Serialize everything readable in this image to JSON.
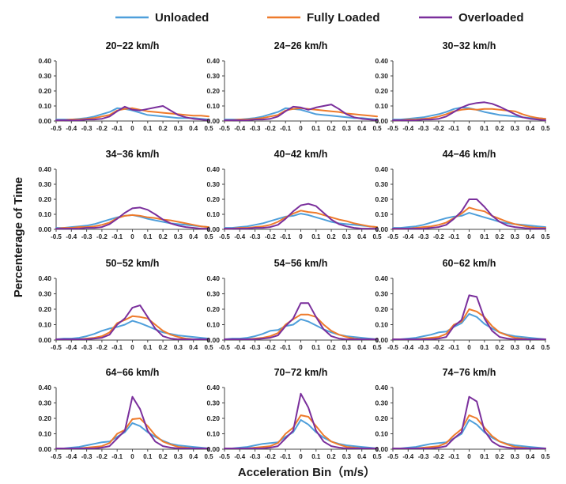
{
  "chart_data": {
    "type": "line",
    "ylabel": "Percenterage of Time",
    "xlabel": "Acceleration Bin（m/s）",
    "x": [
      -0.5,
      -0.45,
      -0.4,
      -0.35,
      -0.3,
      -0.25,
      -0.2,
      -0.15,
      -0.1,
      -0.05,
      0,
      0.05,
      0.1,
      0.15,
      0.2,
      0.25,
      0.3,
      0.35,
      0.4,
      0.45,
      0.5
    ],
    "x_tick_labels": [
      "-0.5",
      "-0.4",
      "-0.3",
      "-0.2",
      "-0.1",
      "0",
      "0.1",
      "0.2",
      "0.3",
      "0.4",
      "0.5"
    ],
    "y_tick_labels": [
      "0.00",
      "0.10",
      "0.20",
      "0.30",
      "0.40"
    ],
    "ylim": [
      0,
      0.4
    ],
    "xlim": [
      -0.5,
      0.5
    ],
    "legend": [
      {
        "name": "Unloaded",
        "color": "#4f9fdb"
      },
      {
        "name": "Fully Loaded",
        "color": "#ee7b2c"
      },
      {
        "name": "Overloaded",
        "color": "#7a2f9c"
      }
    ],
    "panels": [
      {
        "title": "20−22 km/h",
        "series": [
          [
            0.01,
            0.01,
            0.01,
            0.015,
            0.02,
            0.03,
            0.045,
            0.06,
            0.085,
            0.08,
            0.07,
            0.055,
            0.04,
            0.035,
            0.03,
            0.025,
            0.02,
            0.02,
            0.02,
            0.015,
            0.01
          ],
          [
            0.005,
            0.005,
            0.01,
            0.01,
            0.015,
            0.02,
            0.03,
            0.04,
            0.07,
            0.08,
            0.085,
            0.075,
            0.065,
            0.06,
            0.055,
            0.05,
            0.045,
            0.04,
            0.035,
            0.035,
            0.03
          ],
          [
            0.005,
            0.005,
            0.005,
            0.005,
            0.01,
            0.01,
            0.015,
            0.03,
            0.065,
            0.095,
            0.075,
            0.07,
            0.08,
            0.09,
            0.1,
            0.07,
            0.04,
            0.025,
            0.015,
            0.01,
            0.005
          ]
        ]
      },
      {
        "title": "24−26 km/h",
        "series": [
          [
            0.01,
            0.01,
            0.01,
            0.015,
            0.02,
            0.03,
            0.045,
            0.06,
            0.085,
            0.08,
            0.075,
            0.06,
            0.045,
            0.04,
            0.035,
            0.03,
            0.025,
            0.02,
            0.02,
            0.015,
            0.01
          ],
          [
            0.005,
            0.005,
            0.01,
            0.01,
            0.015,
            0.02,
            0.03,
            0.04,
            0.07,
            0.08,
            0.085,
            0.08,
            0.075,
            0.07,
            0.065,
            0.06,
            0.05,
            0.045,
            0.04,
            0.035,
            0.03
          ],
          [
            0.005,
            0.005,
            0.005,
            0.005,
            0.01,
            0.01,
            0.015,
            0.03,
            0.065,
            0.095,
            0.09,
            0.075,
            0.09,
            0.1,
            0.11,
            0.08,
            0.045,
            0.025,
            0.015,
            0.01,
            0.005
          ]
        ]
      },
      {
        "title": "30−32 km/h",
        "series": [
          [
            0.01,
            0.01,
            0.015,
            0.02,
            0.025,
            0.035,
            0.045,
            0.06,
            0.08,
            0.09,
            0.085,
            0.075,
            0.06,
            0.05,
            0.04,
            0.035,
            0.03,
            0.025,
            0.02,
            0.02,
            0.015
          ],
          [
            0.005,
            0.005,
            0.01,
            0.01,
            0.015,
            0.02,
            0.03,
            0.045,
            0.065,
            0.075,
            0.08,
            0.075,
            0.08,
            0.08,
            0.075,
            0.07,
            0.065,
            0.045,
            0.03,
            0.02,
            0.015
          ],
          [
            0.005,
            0.005,
            0.005,
            0.005,
            0.01,
            0.01,
            0.015,
            0.03,
            0.06,
            0.09,
            0.11,
            0.12,
            0.125,
            0.115,
            0.095,
            0.07,
            0.045,
            0.025,
            0.015,
            0.01,
            0.005
          ]
        ]
      },
      {
        "title": "34−36 km/h",
        "series": [
          [
            0.01,
            0.01,
            0.015,
            0.02,
            0.025,
            0.035,
            0.05,
            0.065,
            0.08,
            0.09,
            0.095,
            0.085,
            0.07,
            0.06,
            0.05,
            0.04,
            0.035,
            0.03,
            0.025,
            0.02,
            0.015
          ],
          [
            0.005,
            0.01,
            0.01,
            0.015,
            0.015,
            0.02,
            0.03,
            0.045,
            0.075,
            0.09,
            0.095,
            0.09,
            0.08,
            0.075,
            0.065,
            0.06,
            0.05,
            0.04,
            0.03,
            0.02,
            0.015
          ],
          [
            0.005,
            0.005,
            0.005,
            0.005,
            0.01,
            0.01,
            0.015,
            0.035,
            0.07,
            0.11,
            0.14,
            0.145,
            0.13,
            0.1,
            0.065,
            0.04,
            0.025,
            0.015,
            0.01,
            0.005,
            0.005
          ]
        ]
      },
      {
        "title": "40−42 km/h",
        "series": [
          [
            0.01,
            0.01,
            0.015,
            0.02,
            0.03,
            0.04,
            0.055,
            0.07,
            0.085,
            0.09,
            0.105,
            0.095,
            0.08,
            0.065,
            0.05,
            0.04,
            0.035,
            0.03,
            0.025,
            0.02,
            0.015
          ],
          [
            0.005,
            0.005,
            0.01,
            0.01,
            0.015,
            0.02,
            0.03,
            0.05,
            0.08,
            0.105,
            0.125,
            0.115,
            0.11,
            0.095,
            0.08,
            0.065,
            0.055,
            0.04,
            0.03,
            0.02,
            0.015
          ],
          [
            0.005,
            0.005,
            0.005,
            0.005,
            0.01,
            0.01,
            0.015,
            0.03,
            0.07,
            0.12,
            0.16,
            0.17,
            0.155,
            0.11,
            0.065,
            0.035,
            0.02,
            0.01,
            0.005,
            0.005,
            0.005
          ]
        ]
      },
      {
        "title": "44−46 km/h",
        "series": [
          [
            0.01,
            0.01,
            0.015,
            0.02,
            0.03,
            0.045,
            0.06,
            0.075,
            0.085,
            0.09,
            0.11,
            0.095,
            0.08,
            0.065,
            0.05,
            0.04,
            0.035,
            0.03,
            0.025,
            0.02,
            0.015
          ],
          [
            0.005,
            0.005,
            0.005,
            0.01,
            0.015,
            0.02,
            0.03,
            0.045,
            0.075,
            0.105,
            0.145,
            0.13,
            0.12,
            0.09,
            0.07,
            0.05,
            0.035,
            0.025,
            0.015,
            0.01,
            0.01
          ],
          [
            0.005,
            0.005,
            0.005,
            0.005,
            0.005,
            0.01,
            0.015,
            0.03,
            0.07,
            0.12,
            0.2,
            0.2,
            0.15,
            0.09,
            0.05,
            0.025,
            0.015,
            0.01,
            0.005,
            0.005,
            0.005
          ]
        ]
      },
      {
        "title": "50−52 km/h",
        "series": [
          [
            0.005,
            0.01,
            0.01,
            0.015,
            0.025,
            0.04,
            0.06,
            0.075,
            0.085,
            0.1,
            0.125,
            0.11,
            0.09,
            0.07,
            0.05,
            0.04,
            0.03,
            0.025,
            0.02,
            0.015,
            0.01
          ],
          [
            0.005,
            0.005,
            0.005,
            0.005,
            0.01,
            0.015,
            0.025,
            0.05,
            0.11,
            0.13,
            0.155,
            0.15,
            0.14,
            0.1,
            0.06,
            0.035,
            0.02,
            0.01,
            0.005,
            0.005,
            0.005
          ],
          [
            0.005,
            0.005,
            0.005,
            0.005,
            0.005,
            0.01,
            0.015,
            0.035,
            0.1,
            0.14,
            0.21,
            0.225,
            0.15,
            0.075,
            0.025,
            0.01,
            0.005,
            0.005,
            0.005,
            0.005,
            0.005
          ]
        ]
      },
      {
        "title": "54−56 km/h",
        "series": [
          [
            0.005,
            0.01,
            0.01,
            0.015,
            0.025,
            0.04,
            0.06,
            0.065,
            0.09,
            0.1,
            0.135,
            0.12,
            0.095,
            0.07,
            0.05,
            0.035,
            0.025,
            0.02,
            0.015,
            0.01,
            0.005
          ],
          [
            0.005,
            0.005,
            0.005,
            0.005,
            0.01,
            0.015,
            0.025,
            0.045,
            0.1,
            0.135,
            0.165,
            0.165,
            0.15,
            0.1,
            0.06,
            0.035,
            0.02,
            0.01,
            0.005,
            0.005,
            0.005
          ],
          [
            0.005,
            0.005,
            0.005,
            0.005,
            0.005,
            0.01,
            0.015,
            0.03,
            0.09,
            0.14,
            0.24,
            0.24,
            0.15,
            0.07,
            0.025,
            0.01,
            0.005,
            0.005,
            0.005,
            0.005,
            0.005
          ]
        ]
      },
      {
        "title": "60−62 km/h",
        "series": [
          [
            0.005,
            0.005,
            0.01,
            0.015,
            0.025,
            0.035,
            0.05,
            0.055,
            0.085,
            0.11,
            0.17,
            0.15,
            0.105,
            0.075,
            0.05,
            0.035,
            0.025,
            0.02,
            0.015,
            0.01,
            0.005
          ],
          [
            0.005,
            0.005,
            0.005,
            0.005,
            0.01,
            0.015,
            0.02,
            0.04,
            0.1,
            0.12,
            0.2,
            0.185,
            0.15,
            0.09,
            0.05,
            0.03,
            0.015,
            0.01,
            0.005,
            0.005,
            0.005
          ],
          [
            0.005,
            0.005,
            0.005,
            0.005,
            0.005,
            0.005,
            0.01,
            0.02,
            0.09,
            0.13,
            0.29,
            0.28,
            0.14,
            0.06,
            0.02,
            0.01,
            0.005,
            0.005,
            0.005,
            0.005,
            0.005
          ]
        ]
      },
      {
        "title": "64−66 km/h",
        "series": [
          [
            0.005,
            0.005,
            0.01,
            0.015,
            0.025,
            0.035,
            0.045,
            0.05,
            0.08,
            0.11,
            0.17,
            0.15,
            0.11,
            0.08,
            0.055,
            0.035,
            0.025,
            0.02,
            0.015,
            0.01,
            0.005
          ],
          [
            0.005,
            0.005,
            0.005,
            0.005,
            0.01,
            0.015,
            0.02,
            0.04,
            0.1,
            0.125,
            0.195,
            0.2,
            0.15,
            0.09,
            0.05,
            0.03,
            0.015,
            0.01,
            0.005,
            0.005,
            0.005
          ],
          [
            0.005,
            0.005,
            0.005,
            0.005,
            0.005,
            0.005,
            0.01,
            0.02,
            0.07,
            0.12,
            0.34,
            0.26,
            0.12,
            0.05,
            0.02,
            0.01,
            0.005,
            0.005,
            0.005,
            0.005,
            0.005
          ]
        ]
      },
      {
        "title": "70−72 km/h",
        "series": [
          [
            0.005,
            0.005,
            0.01,
            0.015,
            0.025,
            0.035,
            0.04,
            0.045,
            0.08,
            0.11,
            0.19,
            0.16,
            0.11,
            0.075,
            0.05,
            0.035,
            0.025,
            0.02,
            0.015,
            0.01,
            0.005
          ],
          [
            0.005,
            0.005,
            0.005,
            0.005,
            0.01,
            0.015,
            0.02,
            0.04,
            0.1,
            0.14,
            0.22,
            0.21,
            0.15,
            0.09,
            0.05,
            0.03,
            0.015,
            0.01,
            0.005,
            0.005,
            0.005
          ],
          [
            0.005,
            0.005,
            0.005,
            0.005,
            0.005,
            0.005,
            0.01,
            0.02,
            0.07,
            0.12,
            0.36,
            0.27,
            0.12,
            0.05,
            0.02,
            0.01,
            0.005,
            0.005,
            0.005,
            0.005,
            0.005
          ]
        ]
      },
      {
        "title": "74−76 km/h",
        "series": [
          [
            0.005,
            0.005,
            0.01,
            0.015,
            0.025,
            0.035,
            0.04,
            0.045,
            0.07,
            0.1,
            0.19,
            0.16,
            0.11,
            0.075,
            0.05,
            0.035,
            0.025,
            0.02,
            0.015,
            0.01,
            0.005
          ],
          [
            0.005,
            0.005,
            0.005,
            0.005,
            0.01,
            0.015,
            0.02,
            0.04,
            0.09,
            0.13,
            0.22,
            0.2,
            0.14,
            0.085,
            0.05,
            0.03,
            0.015,
            0.01,
            0.005,
            0.005,
            0.005
          ],
          [
            0.005,
            0.005,
            0.005,
            0.005,
            0.005,
            0.005,
            0.01,
            0.02,
            0.07,
            0.11,
            0.34,
            0.31,
            0.12,
            0.05,
            0.02,
            0.01,
            0.005,
            0.005,
            0.005,
            0.005,
            0.005
          ]
        ]
      }
    ]
  }
}
